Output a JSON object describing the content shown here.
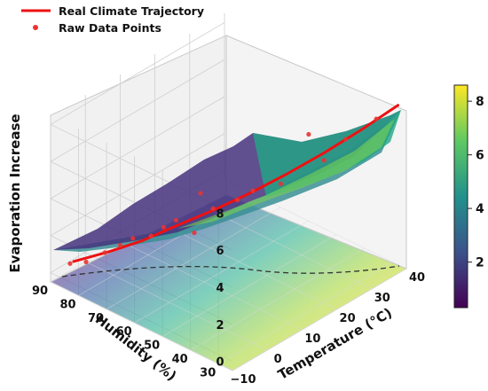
{
  "chart_data": {
    "type": "surface3d",
    "title": "",
    "legend": [
      {
        "label": "Real Climate Trajectory",
        "color": "#ee1111",
        "kind": "line"
      },
      {
        "label": "Raw Data Points",
        "color": "#ee3333",
        "kind": "marker"
      }
    ],
    "xlabel": "Temperature (°C)",
    "ylabel": "Humidity (%)",
    "zlabel": "Evaporation Increase",
    "x_ticks": [
      "−10",
      "0",
      "10",
      "20",
      "30",
      "40"
    ],
    "y_ticks": [
      "30",
      "40",
      "50",
      "60",
      "70",
      "80",
      "90"
    ],
    "z_ticks": [
      "0",
      "2",
      "4",
      "6",
      "8"
    ],
    "xlim": [
      -10,
      40
    ],
    "ylim": [
      25,
      90
    ],
    "zlim": [
      -0.5,
      8.5
    ],
    "colormap": "viridis",
    "colorbar_ticks": [
      "2",
      "4",
      "6",
      "8"
    ],
    "colorbar_range": [
      0.3,
      8.6
    ],
    "trajectory": {
      "temperature": [
        -5,
        0,
        5,
        10,
        15,
        20,
        25,
        30,
        35,
        40
      ],
      "humidity": [
        88,
        82,
        76,
        70,
        63,
        56,
        49,
        42,
        35,
        28
      ],
      "evaporation": [
        0.2,
        0.6,
        1.1,
        1.8,
        2.6,
        3.5,
        4.5,
        5.6,
        6.8,
        8.1
      ]
    },
    "points": [
      {
        "temperature": -6,
        "humidity": 88,
        "evaporation": 0.2
      },
      {
        "temperature": -3,
        "humidity": 86,
        "evaporation": 0.1
      },
      {
        "temperature": 0,
        "humidity": 83,
        "evaporation": 0.5
      },
      {
        "temperature": 2,
        "humidity": 80,
        "evaporation": 0.9
      },
      {
        "temperature": 4,
        "humidity": 78,
        "evaporation": 1.2
      },
      {
        "temperature": 6,
        "humidity": 74,
        "evaporation": 1.4
      },
      {
        "temperature": 8,
        "humidity": 72,
        "evaporation": 1.8
      },
      {
        "temperature": 10,
        "humidity": 70,
        "evaporation": 2.1
      },
      {
        "temperature": 12,
        "humidity": 66,
        "evaporation": 1.5
      },
      {
        "temperature": 13,
        "humidity": 65,
        "evaporation": 3.6
      },
      {
        "temperature": 15,
        "humidity": 63,
        "evaporation": 2.7
      },
      {
        "temperature": 18,
        "humidity": 58,
        "evaporation": 3.2
      },
      {
        "temperature": 20,
        "humidity": 55,
        "evaporation": 3.7
      },
      {
        "temperature": 24,
        "humidity": 50,
        "evaporation": 4.0
      },
      {
        "temperature": 28,
        "humidity": 45,
        "evaporation": 6.6
      },
      {
        "temperature": 30,
        "humidity": 42,
        "evaporation": 5.2
      },
      {
        "temperature": 33,
        "humidity": 38,
        "evaporation": 6.3
      },
      {
        "temperature": 37,
        "humidity": 32,
        "evaporation": 7.4
      }
    ]
  }
}
